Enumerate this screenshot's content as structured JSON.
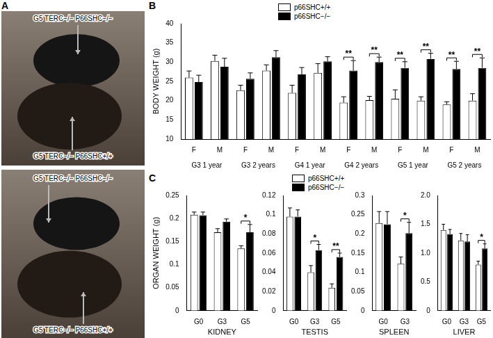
{
  "panel_a": {
    "panel": "A",
    "photos": [
      {
        "labels": [
          "G5 TERC−/− P66SHC−/−",
          "G5 TERC−/− P66SHC+/+"
        ]
      },
      {
        "labels": [
          "G5 TERC−/− P66SHC−/−",
          "G5 TERC−/− P66SHC+/+"
        ]
      }
    ]
  },
  "chart_data": [
    {
      "type": "bar",
      "panel": "B",
      "categories": [
        "F",
        "M",
        "F",
        "M",
        "F",
        "M",
        "F",
        "M",
        "F",
        "M",
        "F",
        "M"
      ],
      "groups": [
        "G3 1 year",
        "G3 2 years",
        "G4 1 year",
        "G4 2 years",
        "G5 1 year",
        "G5 2 years"
      ],
      "y_label": "BODY WEIGHT (g)",
      "ylim": [
        10,
        40
      ],
      "yticks": [
        10,
        15,
        20,
        25,
        30,
        35,
        40
      ],
      "grid": false,
      "legend": "top",
      "series": [
        {
          "name": "p66SHC+/+",
          "color": "#ffffff",
          "values": [
            26.0,
            30.3,
            22.7,
            27.8,
            22.0,
            27.2,
            19.5,
            20.1,
            20.5,
            20.0,
            19.0,
            20.0
          ],
          "errors": [
            1.7,
            1.5,
            1.3,
            1.5,
            2.0,
            2.4,
            1.5,
            1.0,
            2.3,
            1.0,
            0.7,
            1.8
          ]
        },
        {
          "name": "p66SHC−/−",
          "color": "#000000",
          "values": [
            24.8,
            28.8,
            25.7,
            31.3,
            26.8,
            30.2,
            27.8,
            30.0,
            28.5,
            30.8,
            28.2,
            28.5
          ],
          "errors": [
            1.8,
            2.2,
            1.5,
            1.7,
            1.8,
            1.2,
            2.6,
            1.3,
            1.6,
            1.5,
            2.0,
            2.6
          ]
        }
      ],
      "significance": [
        null,
        null,
        null,
        null,
        null,
        null,
        "**",
        "**",
        "**",
        "**",
        "**",
        "**"
      ]
    },
    {
      "type": "bar",
      "panel": "C",
      "categories": [
        "G0",
        "G3",
        "G5"
      ],
      "x_label": "KIDNEY",
      "y_label": "ORGAN WEIGHT (g)",
      "ylim": [
        0,
        0.25
      ],
      "yticks": [
        0,
        0.05,
        0.1,
        0.15,
        0.2,
        0.25
      ],
      "grid": false,
      "legend": "top",
      "series": [
        {
          "name": "p66SHC+/+",
          "color": "#ffffff",
          "values": [
            0.208,
            0.17,
            0.135
          ],
          "errors": [
            0.006,
            0.008,
            0.006
          ]
        },
        {
          "name": "p66SHC−/−",
          "color": "#000000",
          "values": [
            0.207,
            0.193,
            0.17
          ],
          "errors": [
            0.007,
            0.006,
            0.017
          ]
        }
      ],
      "significance": [
        null,
        null,
        "*"
      ]
    },
    {
      "type": "bar",
      "categories": [
        "G0",
        "G3",
        "G5"
      ],
      "x_label": "TESTIS",
      "ylim": [
        0,
        0.12
      ],
      "yticks": [
        0,
        0.02,
        0.04,
        0.06,
        0.08,
        0.1,
        0.12
      ],
      "grid": false,
      "series": [
        {
          "name": "p66SHC+/+",
          "color": "#ffffff",
          "values": [
            0.098,
            0.04,
            0.024
          ],
          "errors": [
            0.009,
            0.007,
            0.004
          ]
        },
        {
          "name": "p66SHC−/−",
          "color": "#000000",
          "values": [
            0.098,
            0.063,
            0.056
          ],
          "errors": [
            0.007,
            0.006,
            0.004
          ]
        }
      ],
      "significance": [
        null,
        "*",
        "**"
      ]
    },
    {
      "type": "bar",
      "categories": [
        "G0",
        "G3"
      ],
      "x_label": "SPLEEN",
      "ylim": [
        0,
        0.3
      ],
      "yticks": [
        0,
        0.05,
        0.1,
        0.15,
        0.2,
        0.25,
        0.3
      ],
      "grid": false,
      "series": [
        {
          "name": "p66SHC+/+",
          "color": "#ffffff",
          "values": [
            0.228,
            0.122
          ],
          "errors": [
            0.03,
            0.018
          ]
        },
        {
          "name": "p66SHC−/−",
          "color": "#000000",
          "values": [
            0.225,
            0.202
          ],
          "errors": [
            0.033,
            0.028
          ]
        }
      ],
      "significance": [
        null,
        "*"
      ]
    },
    {
      "type": "bar",
      "categories": [
        "G0",
        "G3",
        "G5"
      ],
      "x_label": "LIVER",
      "ylim": [
        0,
        2
      ],
      "yticks": [
        0,
        0.5,
        {
          "value": 1,
          "label": "1.0"
        },
        1.5,
        {
          "value": 2,
          "label": "2.0"
        }
      ],
      "grid": false,
      "series": [
        {
          "name": "p66SHC+/+",
          "color": "#ffffff",
          "values": [
            1.4,
            1.22,
            0.8
          ],
          "errors": [
            0.1,
            0.12,
            0.06
          ]
        },
        {
          "name": "p66SHC−/−",
          "color": "#000000",
          "values": [
            1.33,
            1.2,
            1.08
          ],
          "errors": [
            0.08,
            0.12,
            0.08
          ]
        }
      ],
      "significance": [
        null,
        null,
        "*"
      ]
    }
  ]
}
